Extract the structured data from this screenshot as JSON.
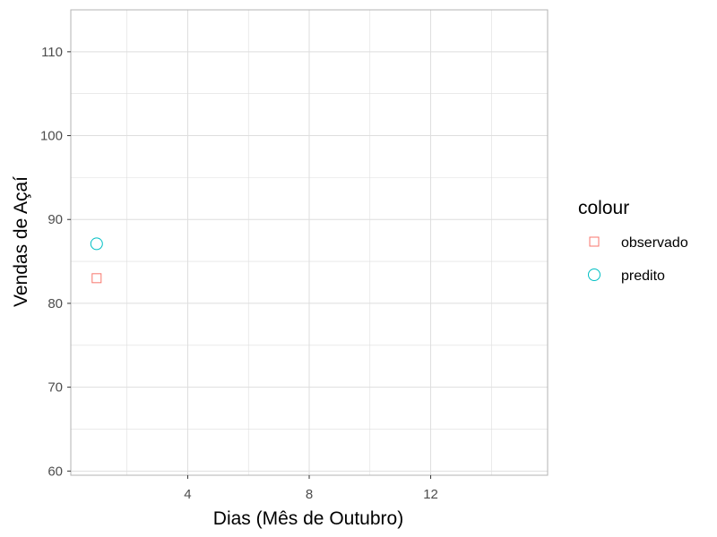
{
  "chart_data": {
    "type": "scatter",
    "xlabel": "Dias (Mês de Outubro)",
    "ylabel": "Vendas de Açaí",
    "xlim": [
      0.15,
      15.85
    ],
    "ylim": [
      59.5,
      115
    ],
    "xticks": [
      4,
      8,
      12
    ],
    "xtick_labels": [
      "4",
      "8",
      "12"
    ],
    "x_minor_gridlines": [
      2,
      6,
      10,
      14
    ],
    "yticks": [
      60,
      70,
      80,
      90,
      100,
      110
    ],
    "ytick_labels": [
      "60",
      "70",
      "80",
      "90",
      "100",
      "110"
    ],
    "y_minor_gridlines": [
      65,
      75,
      85,
      95,
      105
    ],
    "grid": true,
    "legend": {
      "title": "colour",
      "position": "right"
    },
    "series": [
      {
        "name": "observado",
        "marker": "square-open",
        "color": "#F8766D",
        "points": [
          {
            "x": 1,
            "y": 83
          }
        ]
      },
      {
        "name": "predito",
        "marker": "circle-open",
        "color": "#00BFC4",
        "points": [
          {
            "x": 1,
            "y": 87.1
          }
        ]
      }
    ],
    "colors": {
      "panel_border": "#b3b3b3",
      "grid": "#dedede",
      "axis_text": "#4d4d4d"
    }
  }
}
